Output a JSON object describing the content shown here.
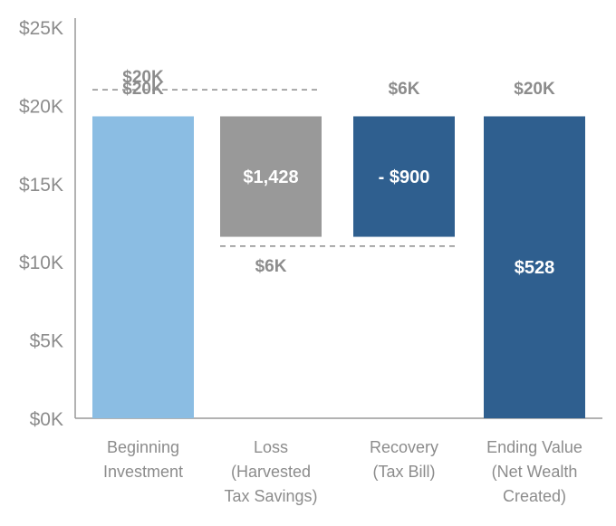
{
  "chart_data": {
    "type": "bar",
    "subtype": "waterfall",
    "title": "",
    "xlabel": "",
    "ylabel": "",
    "ylim": [
      0,
      25000
    ],
    "y_ticks": [
      "$0K",
      "$5K",
      "$10K",
      "$15K",
      "$20K",
      "$25K"
    ],
    "grid": false,
    "legend": "none",
    "categories": [
      [
        "Beginning",
        "Investment"
      ],
      [
        "Loss",
        "(Harvested",
        "Tax Savings)"
      ],
      [
        "Recovery",
        "(Tax Bill)"
      ],
      [
        "Ending Value",
        "(Net Wealth",
        "Created)"
      ]
    ],
    "bars": [
      {
        "base": 0,
        "top": 19300,
        "color": "#8bbde3",
        "inner_label": "",
        "top_label": "$20K"
      },
      {
        "base": 11600,
        "top": 19300,
        "color": "#999999",
        "inner_label": "$1,428",
        "top_label": ""
      },
      {
        "base": 11600,
        "top": 19300,
        "color": "#2f5f8f",
        "inner_label": "- $900",
        "top_label": "$6K"
      },
      {
        "base": 0,
        "top": 19300,
        "color": "#2f5f8f",
        "inner_label": "$528",
        "top_label": "$20K"
      }
    ],
    "reference_lines": [
      {
        "value": 21000,
        "from_bar": 0,
        "to_bar": 1,
        "label": "$20K"
      },
      {
        "value": 11000,
        "from_bar": 1,
        "to_bar": 2,
        "label": "$6K"
      }
    ],
    "axis_color": "#999999"
  }
}
